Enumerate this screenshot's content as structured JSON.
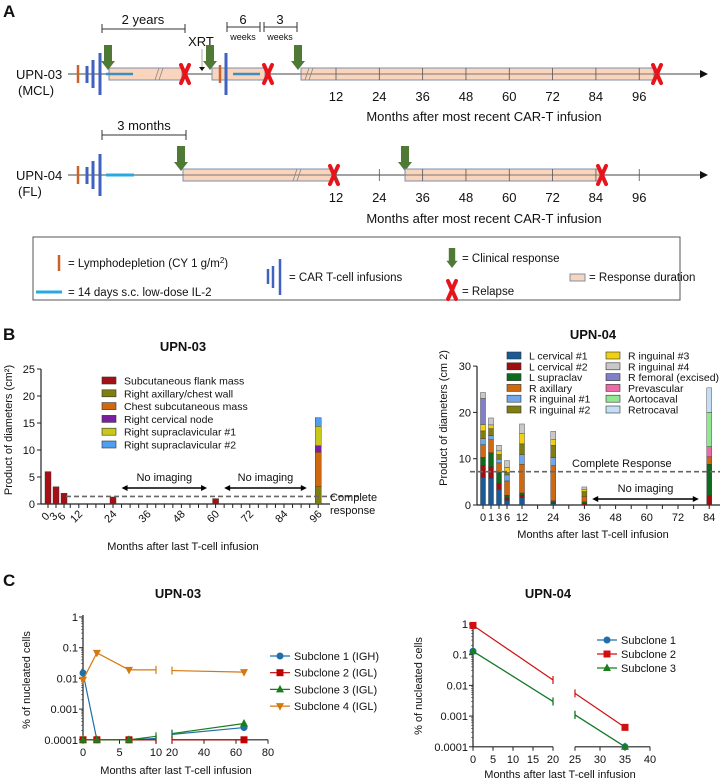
{
  "panel_labels": {
    "a": "A",
    "b": "B",
    "c": "C"
  },
  "colors": {
    "car": "#3f62c0",
    "lympho": "#c8642a",
    "il2": "#2aa8e0",
    "response_fill": "#f9d5bd",
    "response_border": "#7d8fae",
    "clinical": "#4f7a35",
    "relapse": "#e8141c"
  },
  "panel_a": {
    "upn03": {
      "id": "UPN-03",
      "dx": "(MCL)",
      "two_years": "2 years",
      "xrt": "XRT",
      "six": "6",
      "three": "3",
      "weeks": "weeks",
      "ticks": [
        "12",
        "24",
        "36",
        "48",
        "60",
        "72",
        "84",
        "96"
      ],
      "axis_label": "Months after most recent CAR-T infusion"
    },
    "upn04": {
      "id": "UPN-04",
      "dx": "(FL)",
      "three_months": "3 months",
      "ticks": [
        "12",
        "24",
        "36",
        "48",
        "60",
        "72",
        "84",
        "96"
      ],
      "axis_label": "Months after most recent CAR-T infusion"
    },
    "legend": {
      "lympho": "= Lymphodepletion (CY 1 g/m",
      "lympho_sup": "2",
      "lympho_end": ")",
      "il2": "= 14 days s.c. low-dose IL-2",
      "car": "= CAR T-cell infusions",
      "clinical": "= Clinical response",
      "relapse": "= Relapse",
      "response": "= Response duration"
    }
  },
  "chart_data": [
    {
      "id": "b-upn03",
      "type": "bar",
      "stacked": true,
      "title": "UPN-03",
      "xlabel": "Months after last T-cell infusion",
      "ylabel": "Product of diameters  (cm²)",
      "ylim": [
        0,
        25
      ],
      "yticks": [
        "0",
        "5",
        "10",
        "15",
        "20",
        "25"
      ],
      "xticks": [
        "0",
        "3",
        "6",
        "12",
        "24",
        "36",
        "48",
        "60",
        "72",
        "84",
        "96"
      ],
      "series": [
        {
          "name": "Subcutaneous flank mass",
          "color": "#a50f15"
        },
        {
          "name": "Right axillary/chest wall",
          "color": "#7f7f10"
        },
        {
          "name": "Chest subcutaneous mass",
          "color": "#d0680f"
        },
        {
          "name": "Right cervical node",
          "color": "#7a1fa2"
        },
        {
          "name": "Right supraclavicular #1",
          "color": "#c8c81a"
        },
        {
          "name": "Right supraclavicular #2",
          "color": "#4f9ff0"
        }
      ],
      "bars": [
        {
          "month": 0,
          "values": [
            6,
            0,
            0,
            0,
            0,
            0
          ]
        },
        {
          "month": 3,
          "values": [
            3.2,
            0,
            0,
            0,
            0,
            0
          ]
        },
        {
          "month": 6,
          "values": [
            2,
            0,
            0,
            0,
            0,
            0
          ]
        },
        {
          "month": 24,
          "values": [
            1.3,
            0,
            0,
            0,
            0,
            0
          ]
        },
        {
          "month": 60,
          "values": [
            1,
            0,
            0,
            0,
            0,
            0
          ]
        },
        {
          "month": 96,
          "values": [
            0,
            3.2,
            6.4,
            1.2,
            3.6,
            1.6
          ]
        }
      ],
      "reference_line": {
        "value": 1.4,
        "label": "Complete",
        "label2": "response"
      },
      "annotations": [
        {
          "text": "No imaging",
          "from": 27,
          "to": 57
        },
        {
          "text": "No imaging",
          "from": 63,
          "to": 92
        }
      ]
    },
    {
      "id": "b-upn04",
      "type": "bar",
      "stacked": true,
      "title": "UPN-04",
      "xlabel": "Months after last T-cell infusion",
      "ylabel": "Product of diameters  (cm 2)",
      "ylim": [
        0,
        30
      ],
      "yticks": [
        "0",
        "10",
        "20",
        "30"
      ],
      "xticks": [
        "0",
        "1",
        "3",
        "6",
        "12",
        "24",
        "36",
        "48",
        "60",
        "72",
        "84"
      ],
      "series": [
        {
          "name": "L cervical #1",
          "color": "#1a5a96"
        },
        {
          "name": "L cervical #2",
          "color": "#a00f0f"
        },
        {
          "name": "L supraclav",
          "color": "#0e6b1e"
        },
        {
          "name": "R axillary",
          "color": "#d0680f"
        },
        {
          "name": "R inguinal #1",
          "color": "#6fa8ea"
        },
        {
          "name": "R inguinal #2",
          "color": "#7f7f10"
        },
        {
          "name": "R inguinal #3",
          "color": "#f0d010"
        },
        {
          "name": "R femoral (excised)",
          "color": "#8080c8"
        },
        {
          "name": "R inguinal #4",
          "color": "#c8c8c8"
        },
        {
          "name": "Prevascular",
          "color": "#ee6aa6"
        },
        {
          "name": "Aortocaval",
          "color": "#8fe88f"
        },
        {
          "name": "Retrocaval",
          "color": "#c5ddf5"
        }
      ],
      "legend_order": [
        0,
        1,
        2,
        3,
        4,
        5,
        6,
        8,
        7,
        9,
        10,
        11
      ],
      "bars": [
        {
          "month": 0,
          "values": [
            6,
            2.5,
            1.8,
            2.7,
            1.3,
            1.7,
            1.4,
            5.6,
            1.3,
            0,
            0,
            0
          ]
        },
        {
          "month": 1,
          "values": [
            5.8,
            2.5,
            3,
            2.8,
            0.9,
            1.5,
            0.8,
            0,
            1.5,
            0,
            0,
            0
          ]
        },
        {
          "month": 3,
          "values": [
            3.4,
            1.2,
            2.5,
            2,
            0.8,
            1,
            0.8,
            0,
            1.2,
            0,
            0,
            0
          ]
        },
        {
          "month": 6,
          "values": [
            1,
            0.5,
            0.6,
            3.1,
            1.3,
            0.5,
            1.1,
            0,
            1.5,
            0,
            0,
            0
          ]
        },
        {
          "month": 12,
          "values": [
            1.6,
            0.5,
            0.5,
            6.2,
            2.1,
            2.3,
            2.2,
            0,
            2.1,
            0,
            0,
            0
          ]
        },
        {
          "month": 24,
          "values": [
            0.3,
            0.2,
            0.4,
            7.6,
            1.7,
            2.7,
            1.2,
            0,
            1.8,
            0,
            0,
            0
          ]
        },
        {
          "month": 36,
          "values": [
            0,
            0.4,
            0.3,
            1.2,
            0,
            1,
            0.4,
            0,
            0.6,
            0,
            0,
            0
          ]
        },
        {
          "month": 84,
          "values": [
            0,
            2,
            6.8,
            1.6,
            0,
            0,
            0,
            0,
            0,
            2.2,
            7.4,
            5.3
          ]
        }
      ],
      "reference_line": {
        "value": 7.2,
        "label": "Complete Response"
      },
      "annotations": [
        {
          "text": "No imaging",
          "from": 39,
          "to": 80
        }
      ]
    },
    {
      "id": "c-upn03",
      "type": "line",
      "yscale": "log",
      "title": "UPN-03",
      "xlabel": "Months after last T-cell infusion",
      "ylabel": "% of nucleated cells",
      "ylim": [
        0.0001,
        1
      ],
      "yticks": [
        "1",
        "0.1",
        "0.01",
        "0.001",
        "0.0001"
      ],
      "x_segments": [
        {
          "range": [
            0,
            10
          ],
          "ticks": [
            "0",
            "5",
            "10"
          ]
        },
        {
          "range": [
            20,
            80
          ],
          "ticks": [
            "20",
            "40",
            "60",
            "80"
          ]
        }
      ],
      "series": [
        {
          "name": "Subclone 1 (IGH)",
          "color": "#1f6fa8",
          "marker": "circle",
          "points": [
            [
              0,
              0.015
            ],
            [
              1.9,
              0.0001
            ],
            [
              6.3,
              0.0001
            ],
            [
              10,
              0.00011
            ],
            [
              20,
              0.00015
            ],
            [
              65,
              0.00025
            ]
          ]
        },
        {
          "name": "Subclone 2 (IGL)",
          "color": "#c00000",
          "marker": "square",
          "points": [
            [
              0,
              0.0001
            ],
            [
              1.9,
              0.0001
            ],
            [
              6.3,
              0.0001
            ],
            [
              10,
              0.0001
            ],
            [
              20,
              0.0001
            ],
            [
              65,
              0.0001
            ]
          ]
        },
        {
          "name": "Subclone 3 (IGL)",
          "color": "#1b7d1b",
          "marker": "triangle",
          "points": [
            [
              0,
              0.0001
            ],
            [
              1.9,
              0.0001
            ],
            [
              6.3,
              0.0001
            ],
            [
              10,
              0.00013
            ],
            [
              20,
              0.00016
            ],
            [
              65,
              0.00034
            ]
          ]
        },
        {
          "name": "Subclone 4 (IGL)",
          "color": "#d4780f",
          "marker": "triangle-down",
          "points": [
            [
              0,
              0.009
            ],
            [
              1.9,
              0.068
            ],
            [
              6.3,
              0.019
            ],
            [
              10,
              0.019
            ],
            [
              20,
              0.018
            ],
            [
              65,
              0.016
            ]
          ]
        }
      ]
    },
    {
      "id": "c-upn04",
      "type": "line",
      "yscale": "log",
      "title": "UPN-04",
      "xlabel": "Months after last T-cell infusion",
      "ylabel": "% of nucleated cells",
      "ylim": [
        0.0001,
        1
      ],
      "yticks": [
        "1",
        "0.1",
        "0.01",
        "0.001",
        "0.0001"
      ],
      "x_segments": [
        {
          "range": [
            0,
            20
          ],
          "ticks": [
            "0",
            "5",
            "10",
            "15",
            "20"
          ]
        },
        {
          "range": [
            25,
            40
          ],
          "ticks": [
            "25",
            "30",
            "35",
            "40"
          ]
        }
      ],
      "series": [
        {
          "name": "Subclone 1",
          "color": "#1f6fa8",
          "marker": "circle",
          "points": [
            [
              0,
              0.13
            ],
            [
              20,
              0.003
            ],
            [
              25,
              0.0011
            ],
            [
              35,
              0.0001
            ]
          ]
        },
        {
          "name": "Subclone 2",
          "color": "#d01010",
          "marker": "square",
          "points": [
            [
              0,
              0.9
            ],
            [
              20,
              0.015
            ],
            [
              25,
              0.0055
            ],
            [
              35,
              0.00043
            ]
          ]
        },
        {
          "name": "Subclone 3",
          "color": "#1b7d1b",
          "marker": "triangle",
          "points": [
            [
              0,
              0.13
            ],
            [
              20,
              0.003
            ],
            [
              25,
              0.0011
            ],
            [
              35,
              0.0001
            ]
          ]
        }
      ]
    }
  ]
}
